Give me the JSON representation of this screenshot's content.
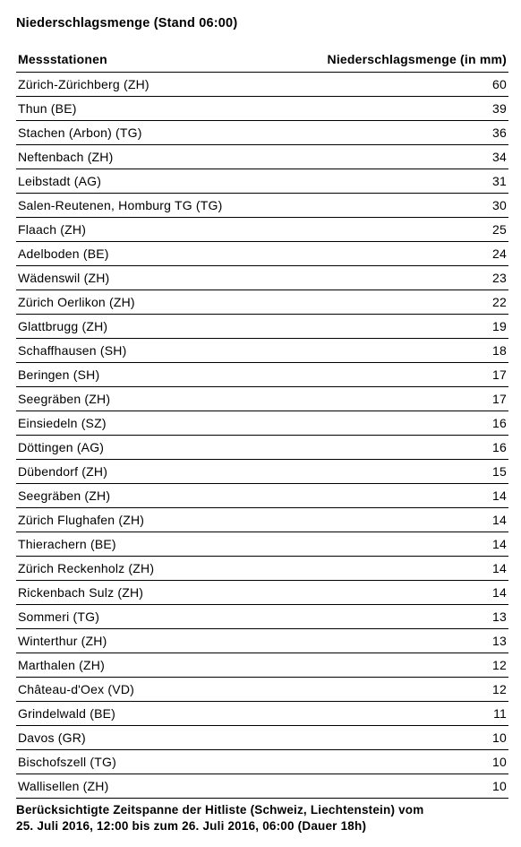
{
  "title": "Niederschlagsmenge (Stand 06:00)",
  "columns": [
    "Messstationen",
    "Niederschlagsmenge (in mm)"
  ],
  "rows": [
    [
      "Zürich-Zürichberg (ZH)",
      "60"
    ],
    [
      "Thun (BE)",
      "39"
    ],
    [
      "Stachen (Arbon) (TG)",
      "36"
    ],
    [
      "Neftenbach (ZH)",
      "34"
    ],
    [
      "Leibstadt (AG)",
      "31"
    ],
    [
      "Salen-Reutenen, Homburg TG (TG)",
      "30"
    ],
    [
      "Flaach (ZH)",
      "25"
    ],
    [
      "Adelboden (BE)",
      "24"
    ],
    [
      "Wädenswil (ZH)",
      "23"
    ],
    [
      "Zürich Oerlikon (ZH)",
      "22"
    ],
    [
      "Glattbrugg (ZH)",
      "19"
    ],
    [
      "Schaffhausen (SH)",
      "18"
    ],
    [
      "Beringen (SH)",
      "17"
    ],
    [
      "Seegräben (ZH)",
      "17"
    ],
    [
      "Einsiedeln (SZ)",
      "16"
    ],
    [
      "Döttingen (AG)",
      "16"
    ],
    [
      "Dübendorf (ZH)",
      "15"
    ],
    [
      "Seegräben (ZH)",
      "14"
    ],
    [
      "Zürich Flughafen (ZH)",
      "14"
    ],
    [
      "Thierachern (BE)",
      "14"
    ],
    [
      "Zürich Reckenholz (ZH)",
      "14"
    ],
    [
      "Rickenbach Sulz (ZH)",
      "14"
    ],
    [
      "Sommeri (TG)",
      "13"
    ],
    [
      "Winterthur (ZH)",
      "13"
    ],
    [
      "Marthalen (ZH)",
      "12"
    ],
    [
      "Château-d'Oex (VD)",
      "12"
    ],
    [
      "Grindelwald (BE)",
      "11"
    ],
    [
      "Davos (GR)",
      "10"
    ],
    [
      "Bischofszell (TG)",
      "10"
    ],
    [
      "Wallisellen (ZH)",
      "10"
    ]
  ],
  "footer_line1": "Berücksichtigte Zeitspanne der Hitliste (Schweiz, Liechtenstein) vom",
  "footer_line2": "25. Juli 2016, 12:00 bis zum 26. Juli 2016, 06:00 (Dauer 18h)",
  "styling": {
    "type": "table",
    "background_color": "#ffffff",
    "text_color": "#000000",
    "border_color": "#000000",
    "title_fontsize": 14.5,
    "header_fontsize": 14,
    "body_fontsize": 14,
    "footer_fontsize": 13.5,
    "font_weight_title": 700,
    "font_weight_header": 700,
    "font_weight_body": 400,
    "font_weight_footer": 700,
    "column_align": [
      "left",
      "right"
    ],
    "row_border_bottom": true
  }
}
